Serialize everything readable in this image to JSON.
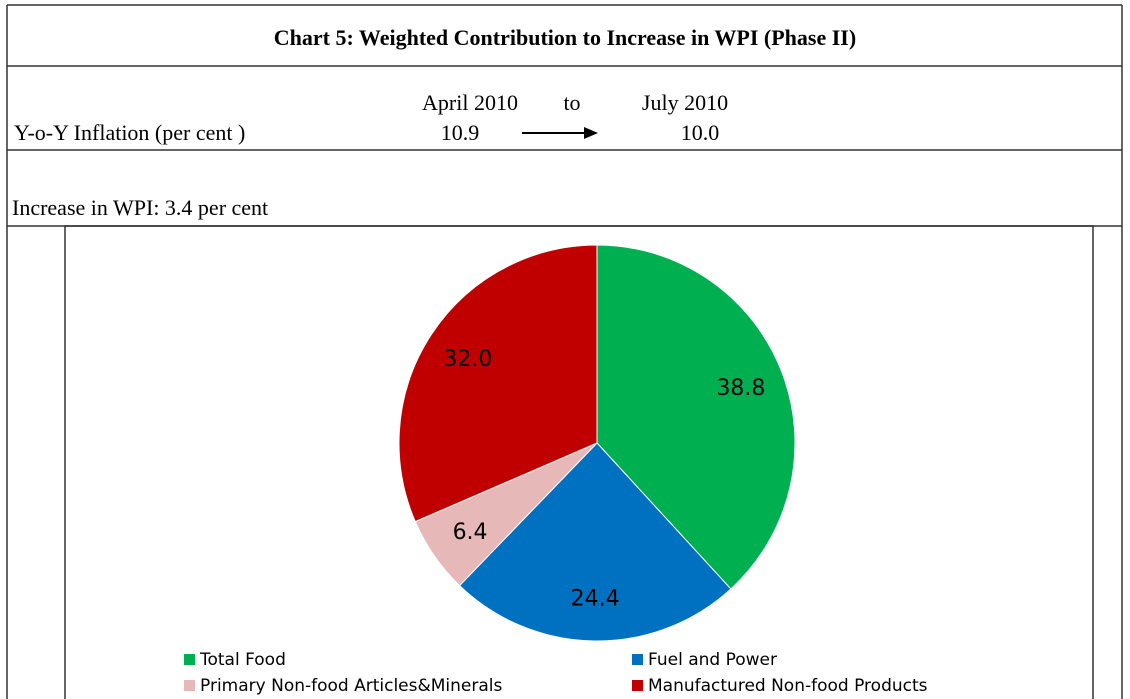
{
  "header": {
    "title": "Chart 5: Weighted Contribution to Increase in WPI (Phase II)",
    "from_label": "April 2010",
    "to_label": "to",
    "end_label": "July 2010",
    "row_label": "Y-o-Y Inflation (per cent )",
    "from_value": "10.9",
    "end_value": "10.0",
    "increase": "Increase in WPI: 3.4 per cent"
  },
  "chart_data": {
    "type": "pie",
    "categories": [
      "Total Food",
      "Fuel and Power",
      "Primary Non-food Articles&Minerals",
      "Manufactured Non-food Products"
    ],
    "values": [
      38.8,
      24.4,
      6.4,
      32.0
    ],
    "value_labels": [
      "38.8",
      "24.4",
      "6.4",
      "32.0"
    ],
    "colors": [
      "#00b050",
      "#0070c0",
      "#e6b9b8",
      "#c00000"
    ]
  }
}
